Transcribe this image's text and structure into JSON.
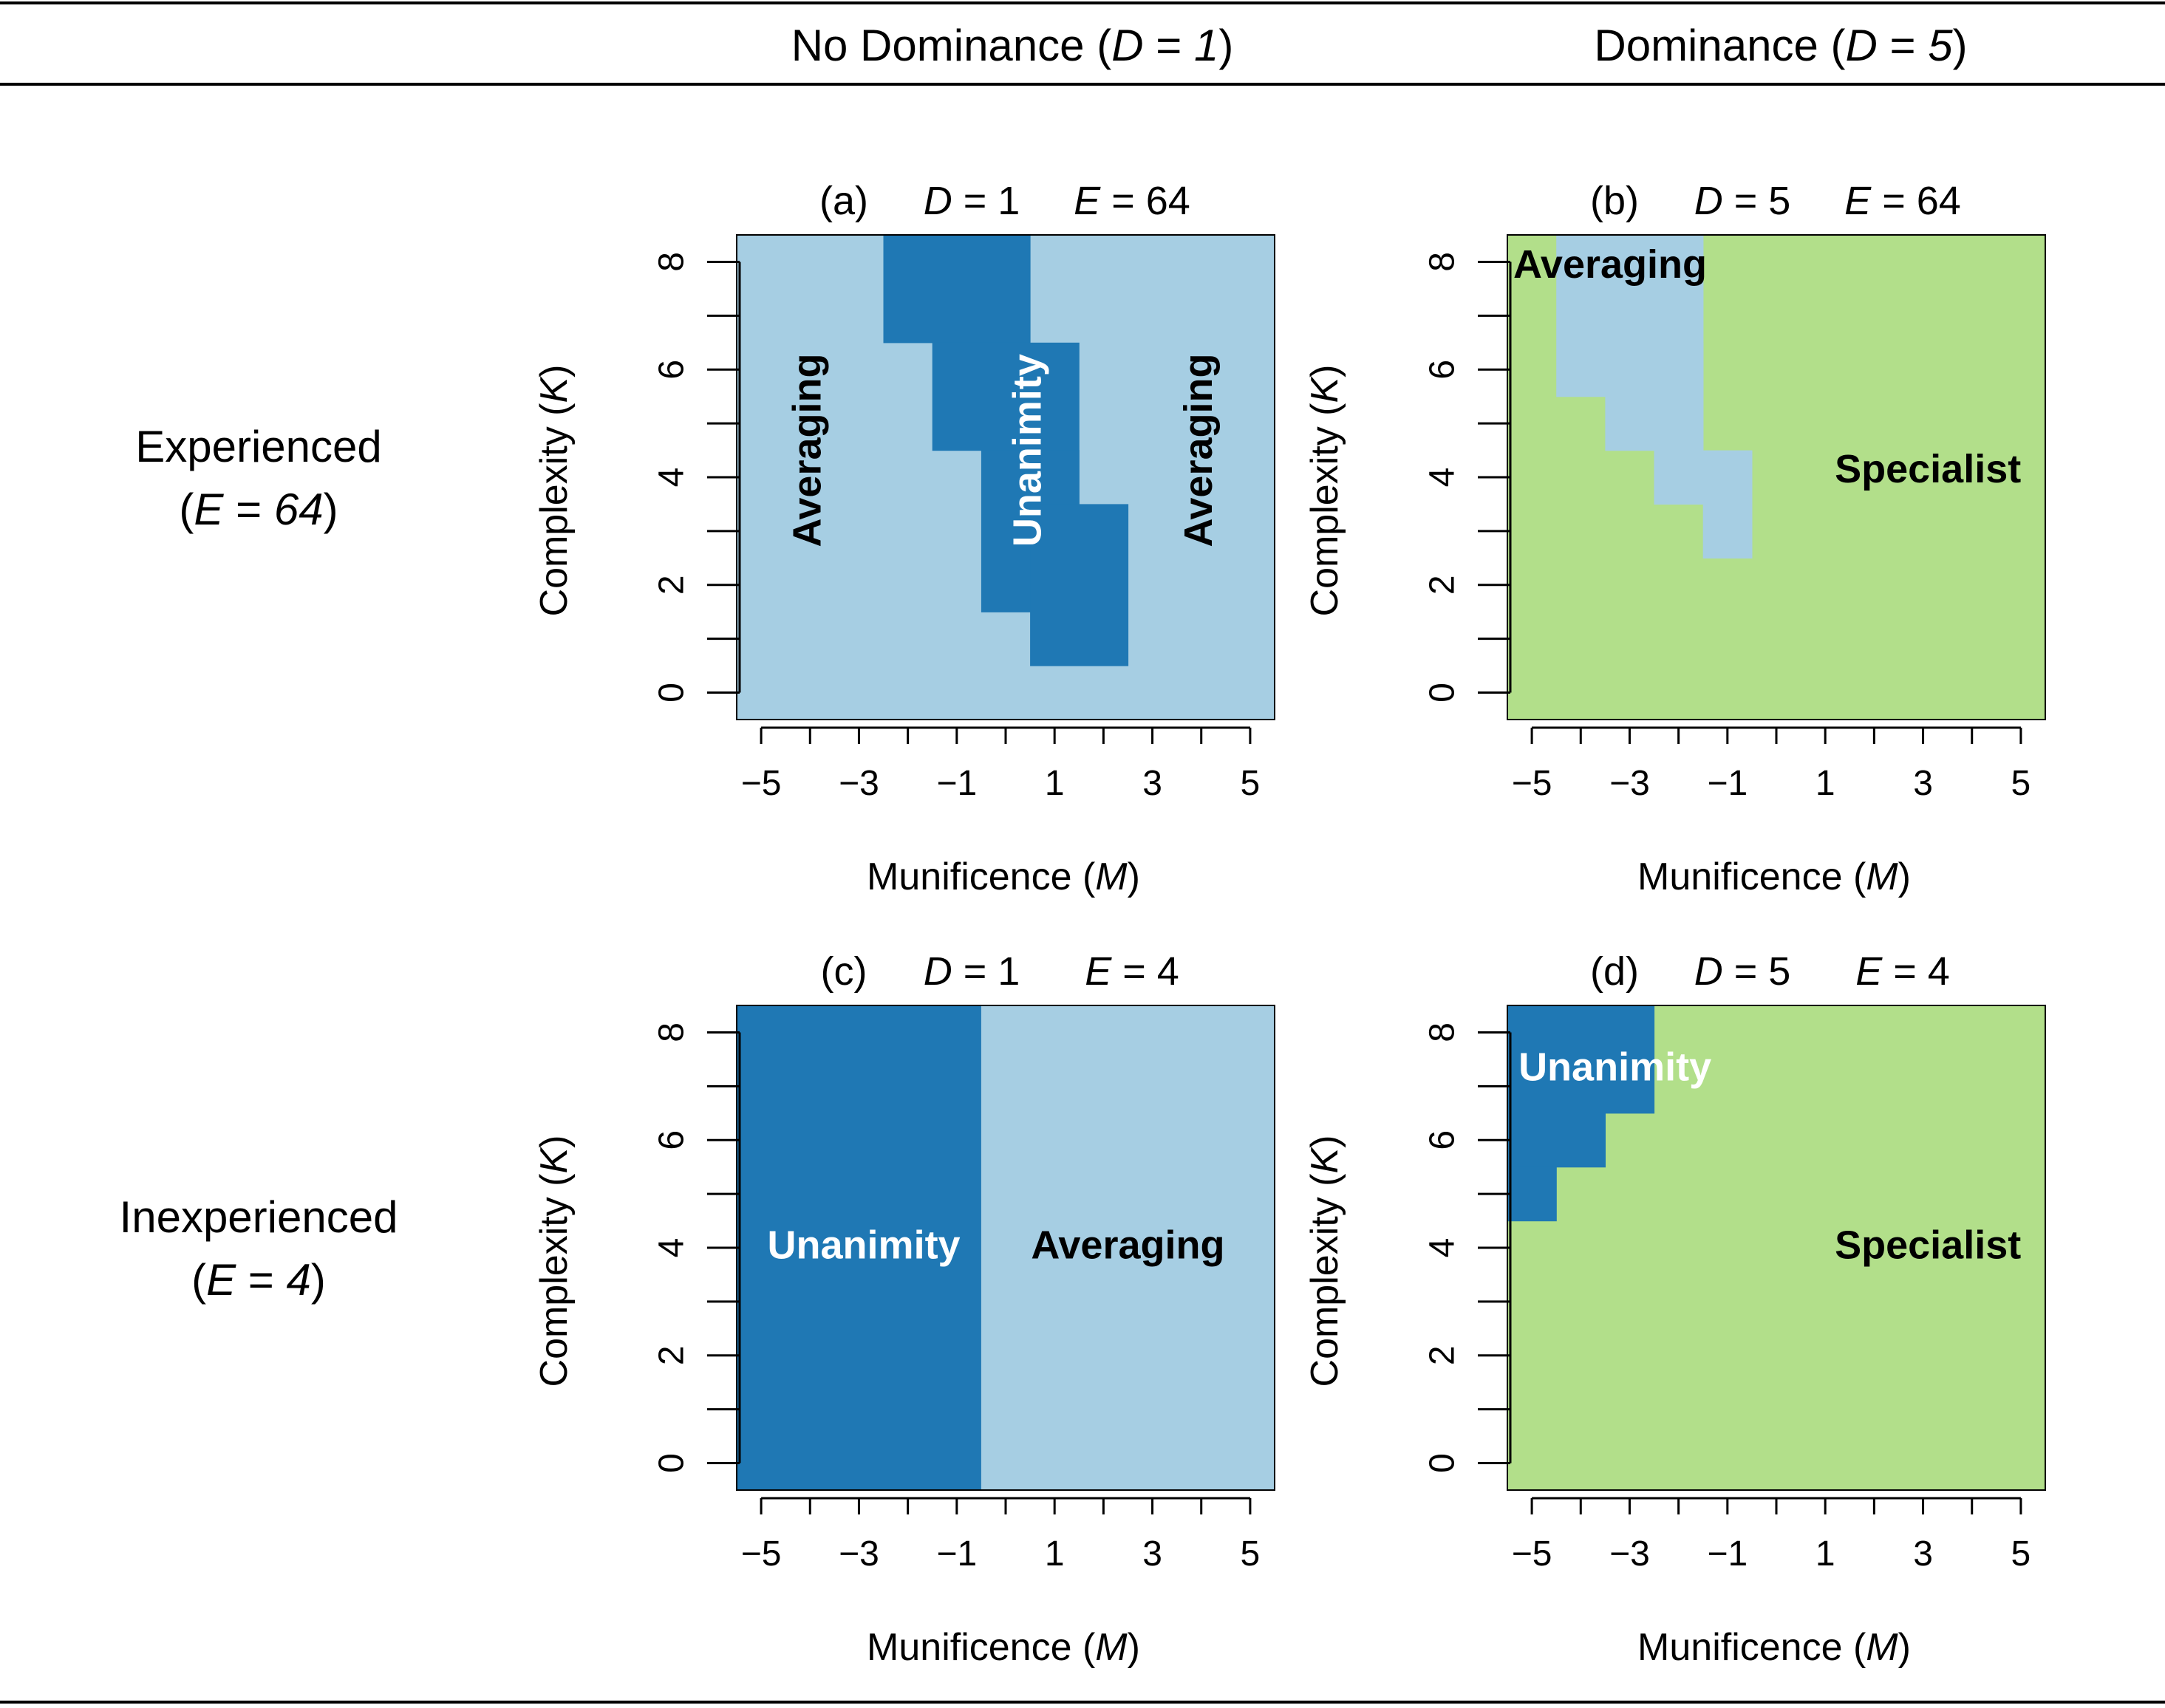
{
  "header": {
    "col1": {
      "pre": "No Dominance (",
      "var": "D",
      "eq": " = ",
      "val": "1",
      "post": ")"
    },
    "col2": {
      "pre": "Dominance (",
      "var": "D",
      "eq": " = ",
      "val": "5",
      "post": ")"
    }
  },
  "rows": [
    {
      "line1": "Experienced",
      "pre": "(",
      "var": "E",
      "eq": " = ",
      "val": "64",
      "post": ")"
    },
    {
      "line1": "Inexperienced",
      "pre": "(",
      "var": "E",
      "eq": " = ",
      "val": "4",
      "post": ")"
    }
  ],
  "colors": {
    "Averaging": "#a6cee3",
    "Unanimity": "#1f78b4",
    "Specialist": "#b2df8a",
    "label_dark": "#000000",
    "label_light": "#ffffff"
  },
  "axis": {
    "x_label_pre": "Munificence (",
    "x_label_var": "M",
    "x_label_post": ")",
    "y_label_pre": "Complexity (",
    "y_label_var": "K",
    "y_label_post": ")",
    "x_ticks_labeled": [
      "−5",
      "−3",
      "−1",
      "1",
      "3",
      "5"
    ],
    "y_ticks_labeled": [
      "0",
      "2",
      "4",
      "6",
      "8"
    ]
  },
  "chart_data": [
    {
      "type": "heatmap",
      "panel": "(a)",
      "title_parts": {
        "letter": "(a)",
        "d_var": "D",
        "d_val": "1",
        "e_var": "E",
        "e_val": "64"
      },
      "xlim": [
        -5,
        5
      ],
      "ylim": [
        0,
        8
      ],
      "cells": [
        {
          "x": [
            -5,
            5
          ],
          "y": [
            0,
            8
          ],
          "strategy": "Averaging"
        },
        {
          "x": [
            -2,
            0
          ],
          "y": [
            7,
            8
          ],
          "strategy": "Unanimity"
        },
        {
          "x": [
            -1,
            1
          ],
          "y": [
            5,
            6
          ],
          "strategy": "Unanimity"
        },
        {
          "x": [
            0,
            1
          ],
          "y": [
            2,
            4
          ],
          "strategy": "Unanimity"
        },
        {
          "x": [
            1,
            2
          ],
          "y": [
            1,
            3
          ],
          "strategy": "Unanimity"
        }
      ],
      "labels": [
        {
          "text": "Averaging",
          "strategy": "Averaging",
          "m": -4.0,
          "k": 4.5,
          "rotate": true
        },
        {
          "text": "Unanimity",
          "strategy": "Unanimity",
          "m": 0.5,
          "k": 4.5,
          "rotate": true
        },
        {
          "text": "Averaging",
          "strategy": "Averaging",
          "m": 4.0,
          "k": 4.5,
          "rotate": true
        }
      ]
    },
    {
      "type": "heatmap",
      "panel": "(b)",
      "title_parts": {
        "letter": "(b)",
        "d_var": "D",
        "d_val": "5",
        "e_var": "E",
        "e_val": "64"
      },
      "xlim": [
        -5,
        5
      ],
      "ylim": [
        0,
        8
      ],
      "cells": [
        {
          "x": [
            -5,
            5
          ],
          "y": [
            0,
            8
          ],
          "strategy": "Specialist"
        },
        {
          "x": [
            -4,
            -2
          ],
          "y": [
            6,
            8
          ],
          "strategy": "Averaging"
        },
        {
          "x": [
            -3,
            -2
          ],
          "y": [
            5,
            6
          ],
          "strategy": "Averaging"
        },
        {
          "x": [
            -2,
            -2
          ],
          "y": [
            4,
            8
          ],
          "strategy": "Averaging"
        },
        {
          "x": [
            -1,
            -1
          ],
          "y": [
            3,
            4
          ],
          "strategy": "Averaging"
        }
      ],
      "labels": [
        {
          "text": "Averaging",
          "strategy": "Averaging",
          "m": -3.4,
          "k": 7.9,
          "rotate": false
        },
        {
          "text": "Specialist",
          "strategy": "Specialist",
          "m": 3.1,
          "k": 4.1,
          "rotate": false
        }
      ]
    },
    {
      "type": "heatmap",
      "panel": "(c)",
      "title_parts": {
        "letter": "(c)",
        "d_var": "D",
        "d_val": "1",
        "e_var": "E",
        "e_val": "4"
      },
      "xlim": [
        -5,
        5
      ],
      "ylim": [
        0,
        8
      ],
      "cells": [
        {
          "x": [
            -5,
            -1
          ],
          "y": [
            0,
            8
          ],
          "strategy": "Unanimity"
        },
        {
          "x": [
            0,
            5
          ],
          "y": [
            0,
            8
          ],
          "strategy": "Averaging"
        }
      ],
      "labels": [
        {
          "text": "Unanimity",
          "strategy": "Unanimity",
          "m": -2.9,
          "k": 4.0,
          "rotate": false
        },
        {
          "text": "Averaging",
          "strategy": "Averaging",
          "m": 2.5,
          "k": 4.0,
          "rotate": false
        }
      ]
    },
    {
      "type": "heatmap",
      "panel": "(d)",
      "title_parts": {
        "letter": "(d)",
        "d_var": "D",
        "d_val": "5",
        "e_var": "E",
        "e_val": "4"
      },
      "xlim": [
        -5,
        5
      ],
      "ylim": [
        0,
        8
      ],
      "cells": [
        {
          "x": [
            -5,
            5
          ],
          "y": [
            0,
            8
          ],
          "strategy": "Specialist"
        },
        {
          "x": [
            -5,
            -3
          ],
          "y": [
            7,
            8
          ],
          "strategy": "Unanimity"
        },
        {
          "x": [
            -5,
            -4
          ],
          "y": [
            6,
            6
          ],
          "strategy": "Unanimity"
        },
        {
          "x": [
            -5,
            -5
          ],
          "y": [
            5,
            5
          ],
          "strategy": "Unanimity"
        }
      ],
      "labels": [
        {
          "text": "Unanimity",
          "strategy": "Unanimity",
          "m": -3.3,
          "k": 7.3,
          "rotate": false
        },
        {
          "text": "Specialist",
          "strategy": "Specialist",
          "m": 3.1,
          "k": 4.0,
          "rotate": false
        }
      ]
    }
  ]
}
